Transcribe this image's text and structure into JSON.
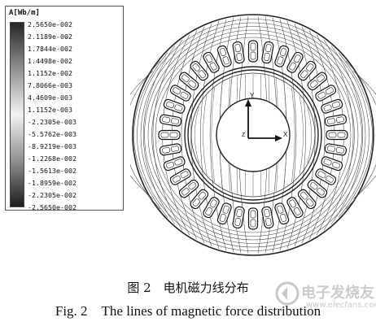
{
  "legend": {
    "title": "A[Wb/m]",
    "values": [
      "2.5650e-002",
      "2.1189e-002",
      "1.7844e-002",
      "1.4498e-002",
      "1.1152e-002",
      "7.8066e-003",
      "4.4609e-003",
      "1.1152e-003",
      "-2.2305e-003",
      "-5.5762e-003",
      "-8.9219e-003",
      "-1.2268e-002",
      "-1.5613e-002",
      "-1.8959e-002",
      "-2.2305e-002",
      "-2.5650e-002"
    ]
  },
  "axes": {
    "y_label": "Y",
    "x_label": "X",
    "z_label": "Z"
  },
  "caption": {
    "cn": "图 2　电机磁力线分布",
    "en": "Fig. 2　The lines of magnetic force distribution"
  },
  "watermark": {
    "text": "电子发烧友",
    "sub": "www.elecfans.com"
  },
  "colors": {
    "ink": "#111111",
    "line": "#333333"
  }
}
